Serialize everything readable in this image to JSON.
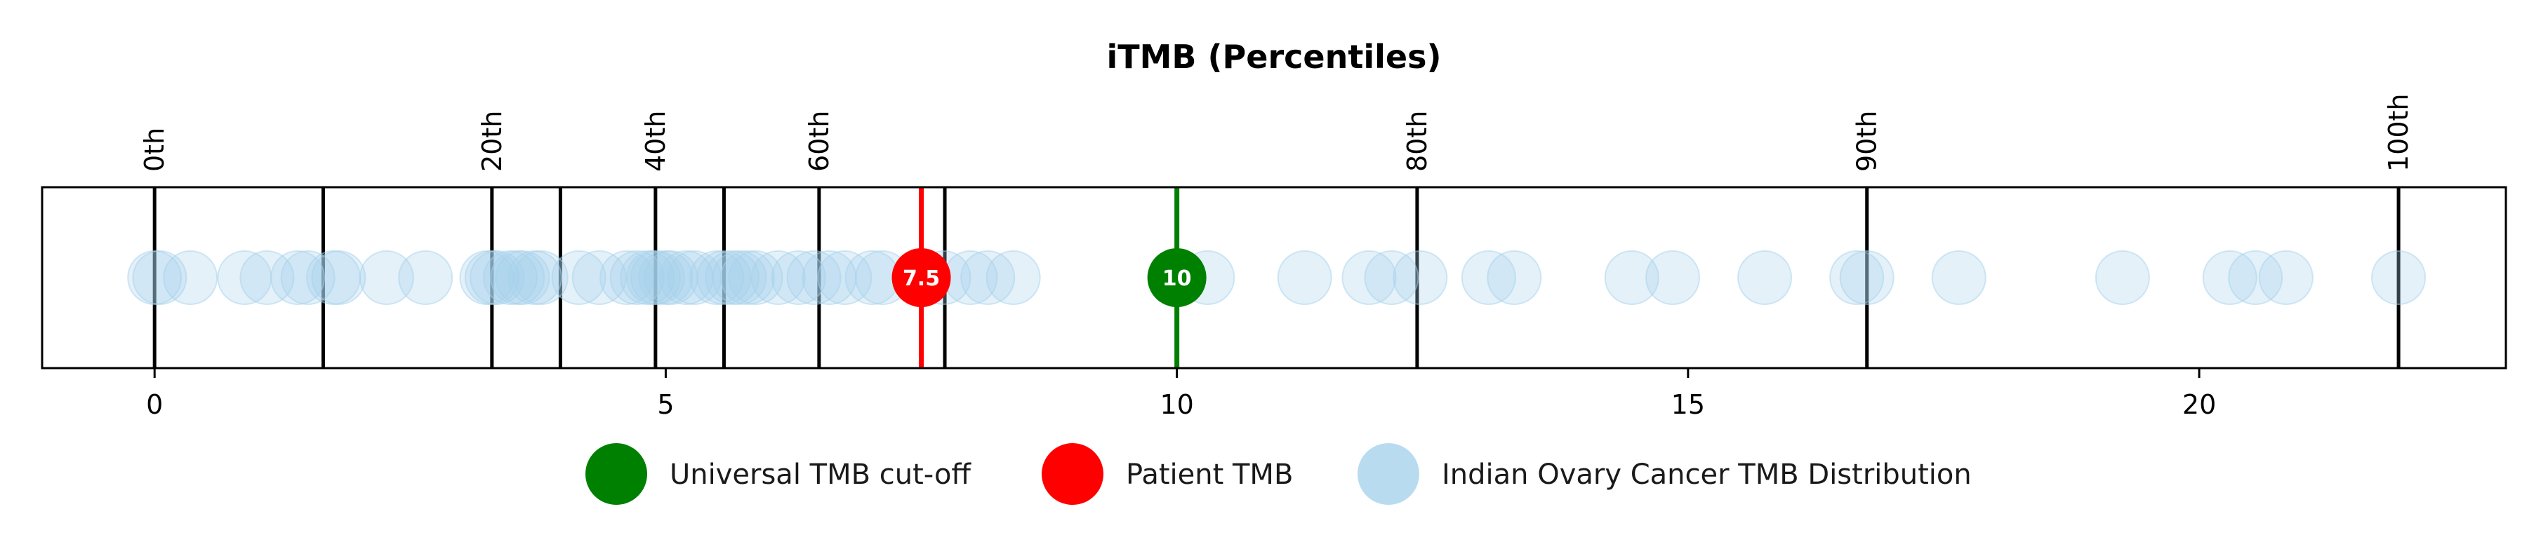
{
  "chart_data": {
    "type": "scatter",
    "title": "iTMB (Percentiles)",
    "xlim": [
      -1.1,
      23.0
    ],
    "x_ticks": [
      0,
      5,
      10,
      15,
      20
    ],
    "x_tick_labels": [
      "0",
      "5",
      "10",
      "15",
      "20"
    ],
    "percentile_lines": [
      {
        "x": 0.0,
        "label": "0th"
      },
      {
        "x": 1.65,
        "label": ""
      },
      {
        "x": 3.3,
        "label": "20th"
      },
      {
        "x": 3.97,
        "label": ""
      },
      {
        "x": 4.9,
        "label": "40th"
      },
      {
        "x": 5.57,
        "label": ""
      },
      {
        "x": 6.5,
        "label": "60th"
      },
      {
        "x": 7.73,
        "label": ""
      },
      {
        "x": 12.35,
        "label": "80th"
      },
      {
        "x": 16.75,
        "label": "90th"
      },
      {
        "x": 21.95,
        "label": "100th"
      }
    ],
    "universal_cutoff": {
      "x": 10,
      "label": "10",
      "color": "#008000"
    },
    "patient_tmb": {
      "x": 7.5,
      "label": "7.5",
      "color": "#ff0000"
    },
    "distribution_color": "#a6d2ec",
    "distribution": [
      0.0,
      0.05,
      0.35,
      0.88,
      1.1,
      1.4,
      1.5,
      1.75,
      1.8,
      2.27,
      2.65,
      3.25,
      3.3,
      3.35,
      3.48,
      3.55,
      3.6,
      3.72,
      3.78,
      4.15,
      4.35,
      4.62,
      4.72,
      4.82,
      4.88,
      4.92,
      5.0,
      5.05,
      5.2,
      5.28,
      5.5,
      5.57,
      5.65,
      5.72,
      5.8,
      5.88,
      6.1,
      6.3,
      6.45,
      6.6,
      6.75,
      7.02,
      7.12,
      7.72,
      7.98,
      8.15,
      8.4,
      10.3,
      11.25,
      11.88,
      12.1,
      12.38,
      13.05,
      13.3,
      14.45,
      14.85,
      15.75,
      16.65,
      16.75,
      17.65,
      19.25,
      20.3,
      20.55,
      20.85,
      21.95
    ],
    "legend": [
      {
        "label": "Universal TMB cut-off",
        "color": "#008000"
      },
      {
        "label": "Patient TMB",
        "color": "#ff0000"
      },
      {
        "label": "Indian Ovary Cancer TMB Distribution",
        "color": "#a6d2ec"
      }
    ],
    "legend_position": "bottom-center",
    "grid": false
  }
}
